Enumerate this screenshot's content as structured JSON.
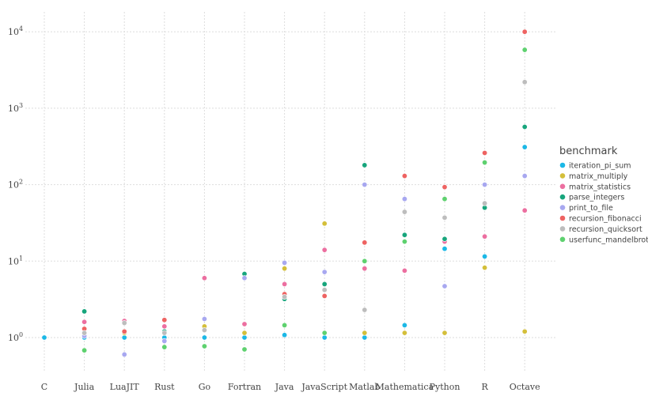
{
  "chart_data": {
    "type": "scatter",
    "title": "",
    "xlabel": "",
    "ylabel": "",
    "yscale": "log",
    "ylim": [
      0.35,
      15000
    ],
    "y_ticks": [
      {
        "value": 1,
        "base": "10",
        "exp": "0"
      },
      {
        "value": 10,
        "base": "10",
        "exp": "1"
      },
      {
        "value": 100,
        "base": "10",
        "exp": "2"
      },
      {
        "value": 1000,
        "base": "10",
        "exp": "3"
      },
      {
        "value": 10000,
        "base": "10",
        "exp": "4"
      }
    ],
    "categories": [
      "C",
      "Julia",
      "LuaJIT",
      "Rust",
      "Go",
      "Fortran",
      "Java",
      "JavaScript",
      "Matlab",
      "Mathematica",
      "Python",
      "R",
      "Octave"
    ],
    "legend_title": "benchmark",
    "series": [
      {
        "name": "iteration_pi_sum",
        "color": "#1cb8e6",
        "values": [
          1.0,
          1.0,
          1.0,
          1.0,
          1.0,
          1.0,
          1.08,
          1.0,
          1.0,
          1.45,
          14.5,
          11.5,
          310
        ]
      },
      {
        "name": "matrix_multiply",
        "color": "#d4bf3a",
        "values": [
          null,
          1.1,
          1.15,
          1.15,
          1.4,
          1.15,
          8.0,
          31,
          1.15,
          1.15,
          1.15,
          8.2,
          1.2
        ]
      },
      {
        "name": "matrix_statistics",
        "color": "#ec6fa0",
        "values": [
          null,
          1.6,
          1.65,
          1.4,
          6.0,
          1.5,
          5.0,
          14,
          8.0,
          7.5,
          18,
          21,
          46
        ]
      },
      {
        "name": "parse_integers",
        "color": "#17a57c",
        "values": [
          null,
          2.2,
          1.2,
          1.2,
          null,
          6.8,
          3.2,
          5.0,
          180,
          22,
          19.5,
          50,
          570
        ]
      },
      {
        "name": "print_to_file",
        "color": "#a8a8f0",
        "values": [
          null,
          1.05,
          0.6,
          0.9,
          1.75,
          6.0,
          9.5,
          7.2,
          100,
          65,
          4.7,
          100,
          130
        ]
      },
      {
        "name": "recursion_fibonacci",
        "color": "#ee6362",
        "values": [
          null,
          1.3,
          1.2,
          1.7,
          null,
          null,
          3.7,
          3.5,
          17.5,
          130,
          93,
          260,
          10000
        ]
      },
      {
        "name": "recursion_quicksort",
        "color": "#bdbdbd",
        "values": [
          null,
          1.15,
          1.55,
          1.15,
          1.25,
          null,
          3.4,
          4.2,
          2.3,
          44,
          37,
          57,
          2200
        ]
      },
      {
        "name": "userfunc_mandelbrot",
        "color": "#5ed16f",
        "values": [
          null,
          0.68,
          null,
          0.75,
          0.77,
          0.7,
          1.45,
          1.15,
          10,
          18,
          65,
          195,
          5800
        ]
      }
    ]
  }
}
